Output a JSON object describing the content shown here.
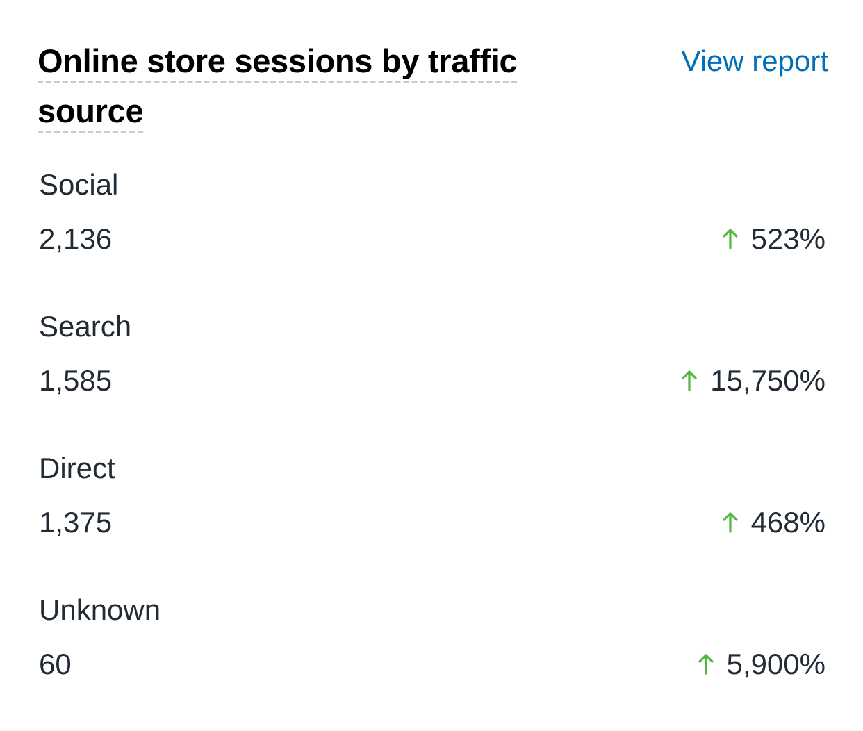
{
  "card": {
    "title": "Online store sessions by traffic source",
    "view_report_label": "View report"
  },
  "colors": {
    "title_underline": "#c4cdd5",
    "link": "#006fbb",
    "increase_arrow": "#50b83c",
    "text": "#212b36"
  },
  "rows": [
    {
      "label": "Social",
      "value": "2,136",
      "change": "523%",
      "trend_icon": "arrow-up-icon"
    },
    {
      "label": "Search",
      "value": "1,585",
      "change": "15,750%",
      "trend_icon": "arrow-up-icon"
    },
    {
      "label": "Direct",
      "value": "1,375",
      "change": "468%",
      "trend_icon": "arrow-up-icon"
    },
    {
      "label": "Unknown",
      "value": "60",
      "change": "5,900%",
      "trend_icon": "arrow-up-icon"
    }
  ]
}
